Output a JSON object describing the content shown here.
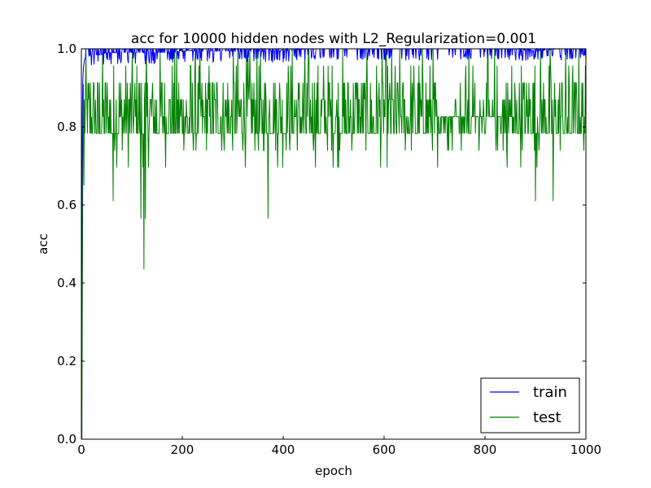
{
  "chart_data": {
    "type": "line",
    "title": "acc for 10000 hidden nodes with L2_Regularization=0.001",
    "xlabel": "epoch",
    "ylabel": "acc",
    "xlim": [
      0,
      1000
    ],
    "ylim": [
      0.0,
      1.0
    ],
    "xticks": [
      "0",
      "200",
      "400",
      "600",
      "800",
      "1000"
    ],
    "yticks": [
      "0.0",
      "0.2",
      "0.4",
      "0.6",
      "0.8",
      "1.0"
    ],
    "grid": false,
    "legend_position": "lower-right",
    "series": [
      {
        "name": "train",
        "color": "#0000ff",
        "description_points": {
          "x": [
            0,
            1,
            2,
            3,
            4,
            5,
            6,
            8,
            10,
            15,
            20,
            30,
            40,
            50,
            60,
            80,
            100,
            120,
            140,
            160,
            180,
            200,
            220,
            240,
            260,
            280,
            300,
            350,
            400,
            450,
            500,
            550,
            600,
            650,
            700,
            750,
            800,
            850,
            900,
            950,
            1000
          ],
          "y": [
            0.05,
            0.55,
            0.85,
            0.92,
            0.95,
            0.96,
            0.97,
            0.97,
            0.975,
            0.975,
            0.98,
            0.98,
            0.98,
            0.985,
            0.985,
            0.985,
            0.985,
            0.985,
            0.985,
            0.985,
            0.985,
            0.99,
            0.99,
            0.99,
            0.99,
            0.99,
            0.99,
            0.99,
            0.99,
            0.995,
            0.995,
            0.995,
            0.995,
            0.995,
            0.995,
            0.995,
            0.995,
            0.995,
            0.99,
            0.995,
            0.995
          ]
        }
      },
      {
        "name": "test",
        "color": "#008000",
        "levels": [
          0.696,
          0.739,
          0.783,
          0.826,
          0.87,
          0.913,
          0.957,
          1.0
        ],
        "dips": [
          {
            "x": 0,
            "y": 0.0
          },
          {
            "x": 2,
            "y": 0.39
          },
          {
            "x": 5,
            "y": 0.65
          },
          {
            "x": 63,
            "y": 0.61
          },
          {
            "x": 118,
            "y": 0.565
          },
          {
            "x": 124,
            "y": 0.435
          },
          {
            "x": 127,
            "y": 0.565
          },
          {
            "x": 370,
            "y": 0.565
          },
          {
            "x": 900,
            "y": 0.61
          },
          {
            "x": 935,
            "y": 0.61
          }
        ]
      }
    ]
  }
}
